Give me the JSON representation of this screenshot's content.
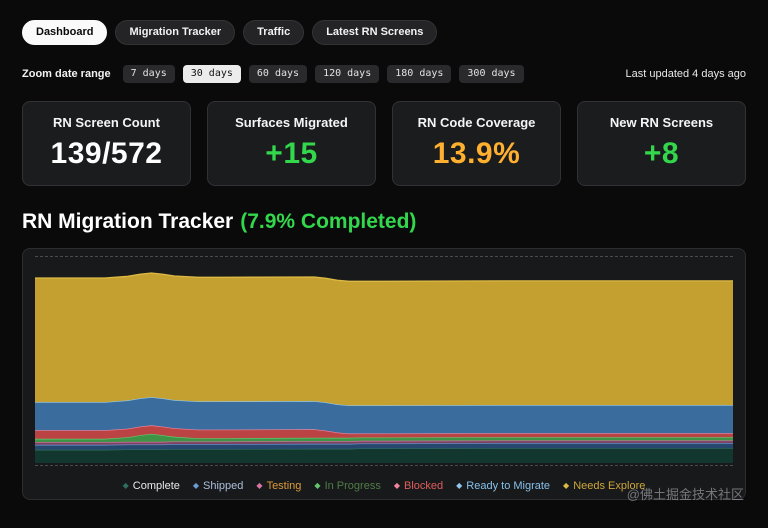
{
  "nav": {
    "tabs": [
      {
        "label": "Dashboard",
        "active": true
      },
      {
        "label": "Migration Tracker",
        "active": false
      },
      {
        "label": "Traffic",
        "active": false
      },
      {
        "label": "Latest RN Screens",
        "active": false
      }
    ]
  },
  "date_range": {
    "label": "Zoom date range",
    "options": [
      {
        "label": "7 days",
        "active": false
      },
      {
        "label": "30 days",
        "active": true
      },
      {
        "label": "60 days",
        "active": false
      },
      {
        "label": "120 days",
        "active": false
      },
      {
        "label": "180 days",
        "active": false
      },
      {
        "label": "300 days",
        "active": false
      }
    ],
    "last_updated": "Last updated 4 days ago"
  },
  "stats": [
    {
      "title": "RN Screen Count",
      "value": "139/572",
      "color": "#ffffff"
    },
    {
      "title": "Surfaces Migrated",
      "value": "+15",
      "color": "#32d74b"
    },
    {
      "title": "RN Code Coverage",
      "value": "13.9%",
      "color": "#ffb02e"
    },
    {
      "title": "New RN Screens",
      "value": "+8",
      "color": "#32d74b"
    }
  ],
  "section": {
    "title": "RN Migration Tracker",
    "subtitle": "(7.9% Completed)",
    "subtitle_color": "#32d74b"
  },
  "chart_data": {
    "type": "area",
    "stacked": true,
    "title": "",
    "xlabel": "",
    "ylabel": "",
    "xlim": [
      0,
      30
    ],
    "ylim": [
      0,
      580
    ],
    "grid": "dashed horizontal lines top and bottom",
    "legend_position": "bottom",
    "x": [
      0,
      3,
      4,
      4.5,
      5,
      5.5,
      6,
      7,
      8,
      12,
      12.5,
      13,
      13.5,
      14,
      15,
      20,
      25,
      30
    ],
    "series": [
      {
        "name": "Complete",
        "fill": "#12372f",
        "stroke": "#2e6e5e",
        "legend_color": "#e8e8ea",
        "values": [
          40,
          40,
          41,
          41,
          41,
          41,
          42,
          42,
          42,
          43,
          43,
          43,
          43,
          44,
          44,
          45,
          45,
          45
        ]
      },
      {
        "name": "Shipped",
        "fill": "#26486e",
        "stroke": "#6b9bd2",
        "legend_color": "#aebedd",
        "values": [
          15,
          15,
          15,
          15,
          15,
          15,
          15,
          15,
          15,
          15,
          15,
          15,
          15,
          15,
          15,
          15,
          15,
          15
        ]
      },
      {
        "name": "Testing",
        "fill": "#7a4361",
        "stroke": "#d873a6",
        "legend_color": "#de9b3c",
        "values": [
          8,
          8,
          8,
          8,
          8,
          8,
          8,
          8,
          8,
          8,
          8,
          8,
          8,
          8,
          8,
          8,
          8,
          8
        ]
      },
      {
        "name": "In Progress",
        "fill": "#3e9347",
        "stroke": "#63c76b",
        "legend_color": "#4f7d45",
        "values": [
          10,
          10,
          14,
          20,
          24,
          20,
          14,
          10,
          10,
          10,
          10,
          10,
          10,
          10,
          10,
          10,
          10,
          10
        ]
      },
      {
        "name": "Blocked",
        "fill": "#bc4343",
        "stroke": "#f2849c",
        "legend_color": "#e25d5d",
        "values": [
          26,
          26,
          26,
          26,
          26,
          26,
          26,
          26,
          26,
          26,
          22,
          16,
          13,
          12,
          12,
          12,
          12,
          12
        ]
      },
      {
        "name": "Ready to Migrate",
        "fill": "#3a6d9e",
        "stroke": "#8fc6ef",
        "legend_color": "#86c0ea",
        "values": [
          85,
          85,
          85,
          85,
          85,
          85,
          85,
          85,
          85,
          85,
          85,
          85,
          85,
          85,
          85,
          85,
          85,
          85
        ]
      },
      {
        "name": "Needs Explore",
        "fill": "#c3a02f",
        "stroke": "#dcb944",
        "legend_color": "#cda73a",
        "values": [
          375,
          375,
          375,
          375,
          375,
          375,
          375,
          375,
          375,
          375,
          375,
          375,
          375,
          375,
          375,
          375,
          375,
          375
        ]
      }
    ]
  },
  "watermark": "@佛土掘金技术社区"
}
